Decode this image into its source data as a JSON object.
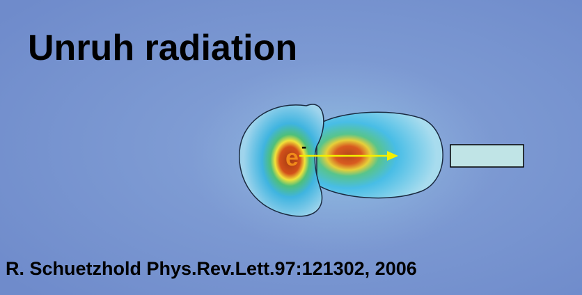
{
  "title": "Unruh radiation",
  "electron": {
    "symbol": "e",
    "charge": "-"
  },
  "citation": "R. Schuetzhold Phys.Rev.Lett.97:121302, 2006"
}
